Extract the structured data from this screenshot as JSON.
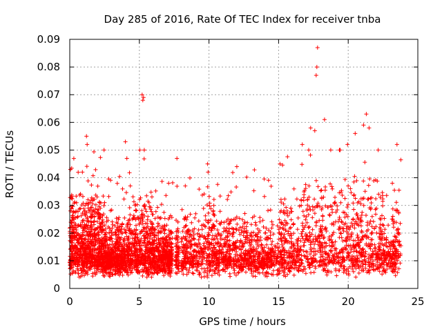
{
  "chart_data": {
    "type": "scatter",
    "title": "Day 285 of 2016, Rate Of TEC Index for receiver tnba",
    "xlabel": "GPS time / hours",
    "ylabel": "ROTI / TECUs",
    "xlim": [
      0,
      25
    ],
    "ylim": [
      0,
      0.09
    ],
    "xticks": [
      0,
      5,
      10,
      15,
      20,
      25
    ],
    "xtick_labels": [
      "0",
      "5",
      "10",
      "15",
      "20",
      "25"
    ],
    "yticks": [
      0,
      0.01,
      0.02,
      0.03,
      0.04,
      0.05,
      0.06,
      0.07,
      0.08,
      0.09
    ],
    "ytick_labels": [
      "0",
      "0.01",
      "0.02",
      "0.03",
      "0.04",
      "0.05",
      "0.06",
      "0.07",
      "0.08",
      "0.09"
    ],
    "grid": true,
    "marker": "+",
    "color": "#ff0000",
    "series": [
      {
        "name": "ROTI",
        "data_coverage_hours": [
          [
            0,
            7.4
          ],
          [
            7.6,
            7.85
          ],
          [
            8.0,
            23.8
          ]
        ],
        "typical_range": [
          0.003,
          0.03
        ],
        "notable_points": [
          {
            "x": 0.05,
            "y": 0.043
          },
          {
            "x": 1.2,
            "y": 0.055
          },
          {
            "x": 1.25,
            "y": 0.052
          },
          {
            "x": 4.0,
            "y": 0.053
          },
          {
            "x": 4.1,
            "y": 0.047
          },
          {
            "x": 5.2,
            "y": 0.07
          },
          {
            "x": 5.25,
            "y": 0.068
          },
          {
            "x": 5.3,
            "y": 0.069
          },
          {
            "x": 7.7,
            "y": 0.047
          },
          {
            "x": 9.9,
            "y": 0.045
          },
          {
            "x": 12.0,
            "y": 0.044
          },
          {
            "x": 15.1,
            "y": 0.045
          },
          {
            "x": 16.7,
            "y": 0.052
          },
          {
            "x": 17.3,
            "y": 0.058
          },
          {
            "x": 17.6,
            "y": 0.057
          },
          {
            "x": 17.7,
            "y": 0.077
          },
          {
            "x": 17.75,
            "y": 0.08
          },
          {
            "x": 17.8,
            "y": 0.087
          },
          {
            "x": 18.3,
            "y": 0.061
          },
          {
            "x": 19.95,
            "y": 0.052
          },
          {
            "x": 20.5,
            "y": 0.056
          },
          {
            "x": 21.1,
            "y": 0.059
          },
          {
            "x": 21.3,
            "y": 0.063
          },
          {
            "x": 21.5,
            "y": 0.058
          },
          {
            "x": 23.5,
            "y": 0.052
          }
        ]
      }
    ]
  }
}
